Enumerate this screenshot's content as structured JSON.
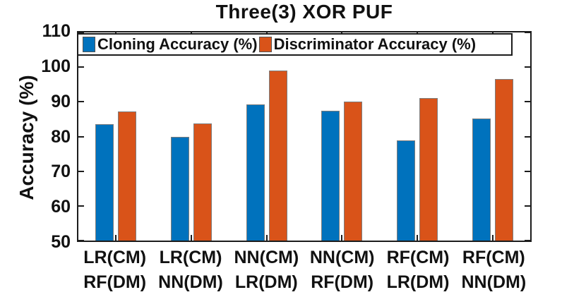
{
  "chart_data": {
    "type": "bar",
    "title": "Three(3) XOR PUF",
    "ylabel": "Accuracy (%)",
    "ylim": [
      50,
      110
    ],
    "yticks": [
      110,
      100,
      90,
      80,
      70,
      60,
      50
    ],
    "grid": false,
    "legend_position": "top-inside",
    "categories": [
      {
        "line1": "LR(CM)",
        "line2": "RF(DM)"
      },
      {
        "line1": "LR(CM)",
        "line2": "NN(DM)"
      },
      {
        "line1": "NN(CM)",
        "line2": "LR(DM)"
      },
      {
        "line1": "NN(CM)",
        "line2": "RF(DM)"
      },
      {
        "line1": "RF(CM)",
        "line2": "LR(DM)"
      },
      {
        "line1": "RF(CM)",
        "line2": "NN(DM)"
      }
    ],
    "series": [
      {
        "name": "Cloning Accuracy (%)",
        "color": "#0072BD",
        "values": [
          83.5,
          80.0,
          89.3,
          87.5,
          78.8,
          85.2
        ]
      },
      {
        "name": "Discriminator Accuracy (%)",
        "color": "#D95319",
        "values": [
          87.3,
          83.8,
          99.0,
          90.1,
          91.0,
          96.6
        ]
      }
    ]
  },
  "colors": {
    "axis": "#1c1c1c",
    "bar_edge": "#7d7d7d",
    "text": "#111111",
    "background": "#ffffff"
  }
}
